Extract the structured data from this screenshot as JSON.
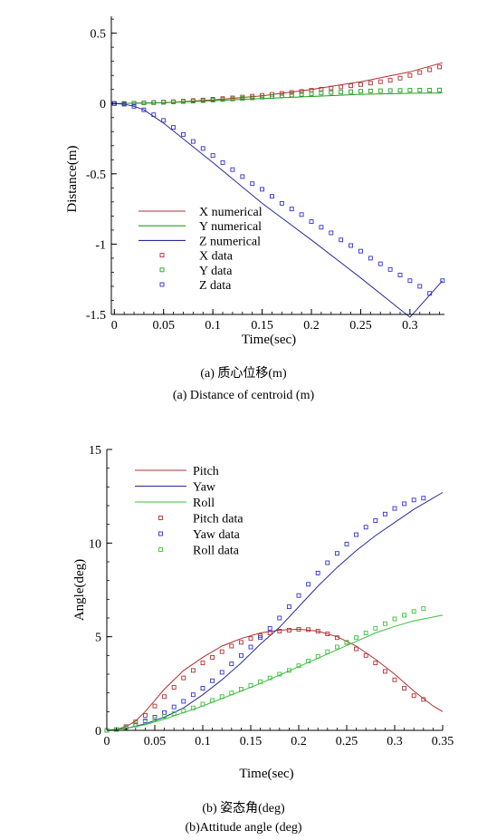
{
  "chart_data": [
    {
      "type": "line",
      "xlabel": "Time(sec)",
      "ylabel": "Distance(m)",
      "xlim": [
        -0.003,
        0.335
      ],
      "ylim": [
        -1.5,
        0.62
      ],
      "xticks": [
        0,
        0.05,
        0.1,
        0.15,
        0.2,
        0.25,
        0.3
      ],
      "xtick_labels": [
        "0",
        "0.05",
        "0.1",
        "0.15",
        "0.2",
        "0.25",
        "0.3"
      ],
      "yticks": [
        0.5,
        0,
        -0.5,
        -1,
        -1.5
      ],
      "ytick_labels": [
        "0.5",
        "0",
        "-0.5",
        "-1",
        "-1.5"
      ],
      "legend_position": "bottom-left",
      "caption_cn": "(a) 质心位移(m)",
      "caption_en": "(a) Distance of centroid (m)",
      "series": [
        {
          "name": "X numerical",
          "kind": "line",
          "color": "#b03030",
          "x": [
            0,
            0.05,
            0.1,
            0.15,
            0.2,
            0.25,
            0.3,
            0.333
          ],
          "y": [
            0,
            0.005,
            0.025,
            0.055,
            0.1,
            0.155,
            0.225,
            0.29
          ]
        },
        {
          "name": "Y numerical",
          "kind": "line",
          "color": "#1fa01f",
          "x": [
            0,
            0.05,
            0.1,
            0.15,
            0.2,
            0.25,
            0.3,
            0.333
          ],
          "y": [
            0,
            0.005,
            0.02,
            0.035,
            0.05,
            0.065,
            0.072,
            0.075
          ]
        },
        {
          "name": "Z numerical",
          "kind": "line",
          "color": "#2a2a9a",
          "x": [
            0,
            0.01,
            0.02,
            0.03,
            0.05,
            0.1,
            0.15,
            0.2,
            0.25,
            0.3,
            0.333
          ],
          "y": [
            0,
            -0.005,
            -0.02,
            -0.045,
            -0.14,
            -0.42,
            -0.71,
            -0.97,
            -1.24,
            -1.52,
            -1.26
          ]
        },
        {
          "name": "X data",
          "kind": "marker",
          "color": "#b03030",
          "x": [
            0,
            0.01,
            0.02,
            0.03,
            0.04,
            0.05,
            0.06,
            0.07,
            0.08,
            0.09,
            0.1,
            0.11,
            0.12,
            0.13,
            0.14,
            0.15,
            0.16,
            0.17,
            0.18,
            0.19,
            0.2,
            0.21,
            0.22,
            0.23,
            0.24,
            0.25,
            0.26,
            0.27,
            0.28,
            0.29,
            0.3,
            0.31,
            0.32,
            0.33
          ],
          "y": [
            0,
            0.0,
            0.002,
            0.004,
            0.007,
            0.01,
            0.013,
            0.017,
            0.021,
            0.025,
            0.03,
            0.035,
            0.04,
            0.046,
            0.052,
            0.058,
            0.065,
            0.072,
            0.079,
            0.086,
            0.094,
            0.102,
            0.11,
            0.118,
            0.126,
            0.135,
            0.145,
            0.155,
            0.165,
            0.18,
            0.2,
            0.22,
            0.24,
            0.26
          ]
        },
        {
          "name": "Y data",
          "kind": "marker",
          "color": "#1fa01f",
          "x": [
            0,
            0.01,
            0.02,
            0.03,
            0.04,
            0.05,
            0.06,
            0.07,
            0.08,
            0.09,
            0.1,
            0.11,
            0.12,
            0.13,
            0.14,
            0.15,
            0.16,
            0.17,
            0.18,
            0.19,
            0.2,
            0.21,
            0.22,
            0.23,
            0.24,
            0.25,
            0.26,
            0.27,
            0.28,
            0.29,
            0.3,
            0.31,
            0.32,
            0.33
          ],
          "y": [
            0,
            0.0,
            0.002,
            0.004,
            0.006,
            0.008,
            0.011,
            0.014,
            0.017,
            0.02,
            0.024,
            0.028,
            0.032,
            0.036,
            0.04,
            0.045,
            0.05,
            0.055,
            0.06,
            0.065,
            0.07,
            0.074,
            0.078,
            0.081,
            0.084,
            0.087,
            0.089,
            0.091,
            0.092,
            0.093,
            0.094,
            0.095,
            0.095,
            0.096
          ]
        },
        {
          "name": "Z data",
          "kind": "marker",
          "color": "#3030d0",
          "x": [
            0,
            0.01,
            0.02,
            0.03,
            0.04,
            0.05,
            0.06,
            0.07,
            0.08,
            0.09,
            0.1,
            0.11,
            0.12,
            0.13,
            0.14,
            0.15,
            0.16,
            0.17,
            0.18,
            0.19,
            0.2,
            0.21,
            0.22,
            0.23,
            0.24,
            0.25,
            0.26,
            0.27,
            0.28,
            0.29,
            0.3,
            0.31,
            0.32,
            0.333
          ],
          "y": [
            0,
            -0.005,
            -0.02,
            -0.045,
            -0.08,
            -0.12,
            -0.17,
            -0.22,
            -0.27,
            -0.32,
            -0.37,
            -0.42,
            -0.47,
            -0.52,
            -0.57,
            -0.61,
            -0.66,
            -0.71,
            -0.75,
            -0.79,
            -0.84,
            -0.88,
            -0.92,
            -0.97,
            -1.01,
            -1.05,
            -1.1,
            -1.14,
            -1.18,
            -1.22,
            -1.26,
            -1.3,
            -1.35,
            -1.26
          ]
        }
      ]
    },
    {
      "type": "line",
      "xlabel": "Time(sec)",
      "ylabel": "Angle(deg)",
      "xlim": [
        0,
        0.35
      ],
      "ylim": [
        0,
        15
      ],
      "xticks": [
        0,
        0.05,
        0.1,
        0.15,
        0.2,
        0.25,
        0.3,
        0.35
      ],
      "xtick_labels": [
        "0",
        "0.05",
        "0.1",
        "0.15",
        "0.2",
        "0.25",
        "0.3",
        "0.35"
      ],
      "yticks": [
        0,
        5,
        10,
        15
      ],
      "ytick_labels": [
        "0",
        "5",
        "10",
        "15"
      ],
      "legend_position": "top-left",
      "caption_cn": "(b) 姿态角(deg)",
      "caption_en": "(b)Attitude angle (deg)",
      "series": [
        {
          "name": "Pitch",
          "kind": "line",
          "color": "#b03030",
          "x": [
            0,
            0.01,
            0.02,
            0.03,
            0.04,
            0.05,
            0.06,
            0.08,
            0.1,
            0.12,
            0.14,
            0.16,
            0.18,
            0.2,
            0.22,
            0.24,
            0.26,
            0.28,
            0.3,
            0.32,
            0.34,
            0.35
          ],
          "y": [
            0,
            0.05,
            0.2,
            0.5,
            1.0,
            1.6,
            2.2,
            3.2,
            3.9,
            4.5,
            4.9,
            5.2,
            5.35,
            5.4,
            5.3,
            5.0,
            4.5,
            3.8,
            3.0,
            2.1,
            1.3,
            1.0
          ]
        },
        {
          "name": "Yaw",
          "kind": "line",
          "color": "#2a2a9a",
          "x": [
            0,
            0.02,
            0.04,
            0.06,
            0.08,
            0.1,
            0.12,
            0.14,
            0.16,
            0.18,
            0.2,
            0.22,
            0.24,
            0.26,
            0.28,
            0.3,
            0.32,
            0.34,
            0.35
          ],
          "y": [
            0,
            0.1,
            0.35,
            0.7,
            1.2,
            1.9,
            2.7,
            3.6,
            4.6,
            5.5,
            6.6,
            7.7,
            8.7,
            9.6,
            10.4,
            11.1,
            11.8,
            12.4,
            12.7
          ]
        },
        {
          "name": "Roll",
          "kind": "line",
          "color": "#3cc03c",
          "x": [
            0,
            0.02,
            0.04,
            0.06,
            0.08,
            0.1,
            0.12,
            0.14,
            0.16,
            0.18,
            0.2,
            0.22,
            0.24,
            0.26,
            0.28,
            0.3,
            0.32,
            0.35
          ],
          "y": [
            0,
            0.1,
            0.3,
            0.6,
            0.95,
            1.3,
            1.7,
            2.1,
            2.5,
            2.95,
            3.4,
            3.85,
            4.3,
            4.75,
            5.2,
            5.55,
            5.85,
            6.15
          ]
        },
        {
          "name": "Pitch data",
          "kind": "marker",
          "color": "#b03030",
          "x": [
            0,
            0.01,
            0.02,
            0.03,
            0.04,
            0.05,
            0.06,
            0.07,
            0.08,
            0.09,
            0.1,
            0.11,
            0.12,
            0.13,
            0.14,
            0.15,
            0.16,
            0.17,
            0.18,
            0.19,
            0.2,
            0.21,
            0.22,
            0.23,
            0.24,
            0.25,
            0.26,
            0.27,
            0.28,
            0.29,
            0.3,
            0.31,
            0.32,
            0.33
          ],
          "y": [
            0,
            0.05,
            0.2,
            0.45,
            0.8,
            1.3,
            1.8,
            2.3,
            2.8,
            3.2,
            3.6,
            3.9,
            4.2,
            4.5,
            4.7,
            4.9,
            5.05,
            5.2,
            5.3,
            5.35,
            5.4,
            5.38,
            5.3,
            5.15,
            4.95,
            4.7,
            4.35,
            4.0,
            3.6,
            3.15,
            2.7,
            2.25,
            1.85,
            1.65
          ]
        },
        {
          "name": "Yaw data",
          "kind": "marker",
          "color": "#3030d0",
          "x": [
            0,
            0.01,
            0.02,
            0.03,
            0.04,
            0.05,
            0.06,
            0.07,
            0.08,
            0.09,
            0.1,
            0.11,
            0.12,
            0.13,
            0.14,
            0.15,
            0.16,
            0.17,
            0.18,
            0.19,
            0.2,
            0.21,
            0.22,
            0.23,
            0.24,
            0.25,
            0.26,
            0.27,
            0.28,
            0.29,
            0.3,
            0.31,
            0.32,
            0.33
          ],
          "y": [
            0,
            0.05,
            0.15,
            0.3,
            0.5,
            0.7,
            0.95,
            1.25,
            1.55,
            1.9,
            2.25,
            2.65,
            3.1,
            3.55,
            4.0,
            4.45,
            4.95,
            5.45,
            6.0,
            6.6,
            7.2,
            7.8,
            8.4,
            8.95,
            9.45,
            9.95,
            10.45,
            10.85,
            11.2,
            11.55,
            11.85,
            12.1,
            12.3,
            12.4
          ]
        },
        {
          "name": "Roll data",
          "kind": "marker",
          "color": "#3cc03c",
          "x": [
            0,
            0.01,
            0.02,
            0.03,
            0.04,
            0.05,
            0.06,
            0.07,
            0.08,
            0.09,
            0.1,
            0.11,
            0.12,
            0.13,
            0.14,
            0.15,
            0.16,
            0.17,
            0.18,
            0.19,
            0.2,
            0.21,
            0.22,
            0.23,
            0.24,
            0.25,
            0.26,
            0.27,
            0.28,
            0.29,
            0.3,
            0.31,
            0.32,
            0.33
          ],
          "y": [
            0,
            0.05,
            0.15,
            0.3,
            0.45,
            0.6,
            0.75,
            0.9,
            1.05,
            1.2,
            1.4,
            1.6,
            1.8,
            2.0,
            2.2,
            2.4,
            2.6,
            2.8,
            3.0,
            3.2,
            3.45,
            3.7,
            3.95,
            4.2,
            4.45,
            4.7,
            4.95,
            5.2,
            5.45,
            5.7,
            5.95,
            6.15,
            6.35,
            6.5
          ]
        }
      ]
    }
  ]
}
